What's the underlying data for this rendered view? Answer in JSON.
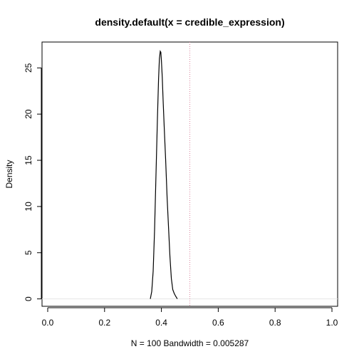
{
  "chart_data": {
    "type": "line",
    "title": "density.default(x = credible_expression)",
    "xlabel": "N = 100   Bandwidth = 0.005287",
    "ylabel": "Density",
    "xlim": [
      -0.02,
      1.02
    ],
    "ylim": [
      -0.8,
      27.8
    ],
    "x_ticks": [
      0.0,
      0.2,
      0.4,
      0.6,
      0.8,
      1.0
    ],
    "x_tick_labels": [
      "0.0",
      "0.2",
      "0.4",
      "0.6",
      "0.8",
      "1.0"
    ],
    "y_ticks": [
      0,
      5,
      10,
      15,
      20,
      25
    ],
    "y_tick_labels": [
      "0",
      "5",
      "10",
      "15",
      "20",
      "25"
    ],
    "grid": false,
    "baseline": {
      "y": 0,
      "color": "#e6e6e6"
    },
    "reference_line": {
      "x": 0.5,
      "color": "#d9859f",
      "style": "dotted"
    },
    "series": [
      {
        "color": "#000000",
        "x": [
          0.361,
          0.366,
          0.371,
          0.376,
          0.381,
          0.386,
          0.39,
          0.393,
          0.396,
          0.398,
          0.4,
          0.403,
          0.406,
          0.41,
          0.415,
          0.42,
          0.425,
          0.43,
          0.435,
          0.44,
          0.445,
          0.45,
          0.456
        ],
        "y": [
          0.0,
          0.8,
          3.0,
          7.5,
          13.5,
          19.5,
          23.8,
          26.0,
          26.8,
          26.7,
          25.8,
          24.0,
          21.5,
          18.5,
          15.0,
          11.0,
          7.8,
          4.6,
          2.2,
          1.0,
          0.6,
          0.3,
          0.0
        ]
      }
    ]
  }
}
